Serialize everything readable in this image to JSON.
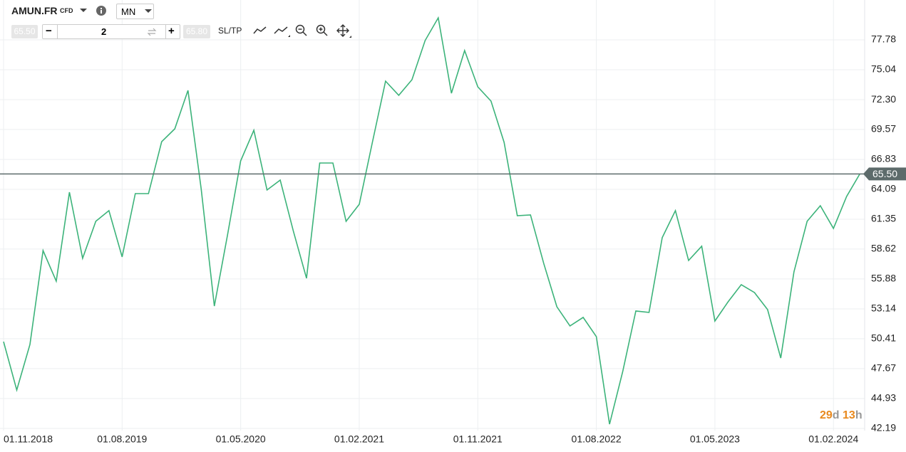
{
  "toolbar": {
    "symbol": "AMUN.FR",
    "instrument_type": "CFD",
    "timeframe": "MN",
    "bid": "65.50",
    "minus": "−",
    "quantity": "2",
    "plus": "+",
    "ask": "65.80",
    "sltp": "SL/TP"
  },
  "countdown": {
    "days": 29,
    "day_unit": "d",
    "hours": 13,
    "hour_unit": "h"
  },
  "chart_data": {
    "type": "line",
    "categories": [
      "01.11.2018",
      null,
      null,
      null,
      null,
      null,
      null,
      null,
      null,
      "01.08.2019",
      null,
      null,
      null,
      null,
      null,
      null,
      null,
      null,
      "01.05.2020",
      null,
      null,
      null,
      null,
      null,
      null,
      null,
      null,
      "01.02.2021",
      null,
      null,
      null,
      null,
      null,
      null,
      null,
      null,
      "01.11.2021",
      null,
      null,
      null,
      null,
      null,
      null,
      null,
      null,
      "01.08.2022",
      null,
      null,
      null,
      null,
      null,
      null,
      null,
      null,
      "01.05.2023",
      null,
      null,
      null,
      null,
      null,
      null,
      null,
      null,
      "01.02.2024",
      null,
      null
    ],
    "series": [
      {
        "name": "AMUN.FR",
        "color": "#3cb37a",
        "values": [
          50.14,
          45.71,
          49.88,
          58.48,
          55.68,
          63.83,
          57.77,
          61.16,
          62.14,
          57.9,
          63.7,
          63.7,
          68.46,
          69.63,
          73.15,
          64.15,
          53.4,
          59.92,
          66.7,
          69.5,
          64.03,
          64.94,
          60.25,
          55.95,
          66.5,
          66.5,
          61.16,
          62.72,
          68.39,
          74.0,
          72.7,
          74.13,
          77.72,
          79.8,
          72.89,
          76.8,
          73.48,
          72.17,
          68.39,
          61.68,
          61.75,
          57.32,
          53.34,
          51.58,
          52.36,
          50.6,
          42.58,
          47.4,
          52.95,
          52.82,
          59.66,
          62.14,
          57.58,
          58.88,
          52.03,
          53.79,
          55.36,
          54.64,
          53.08,
          48.64,
          56.53,
          61.16,
          62.59,
          60.51,
          63.44,
          65.5
        ]
      }
    ],
    "ylim": [
      41.99,
      81.43
    ],
    "yticks": [
      42.19,
      44.93,
      47.67,
      50.41,
      53.14,
      55.88,
      58.62,
      61.35,
      64.09,
      66.83,
      69.57,
      {
        "value": 72.3,
        "label": "72.30"
      },
      75.04,
      77.78
    ],
    "grid": true,
    "price_line": {
      "value": 65.5,
      "label": "65.50",
      "color": "#5d6b6b"
    }
  }
}
